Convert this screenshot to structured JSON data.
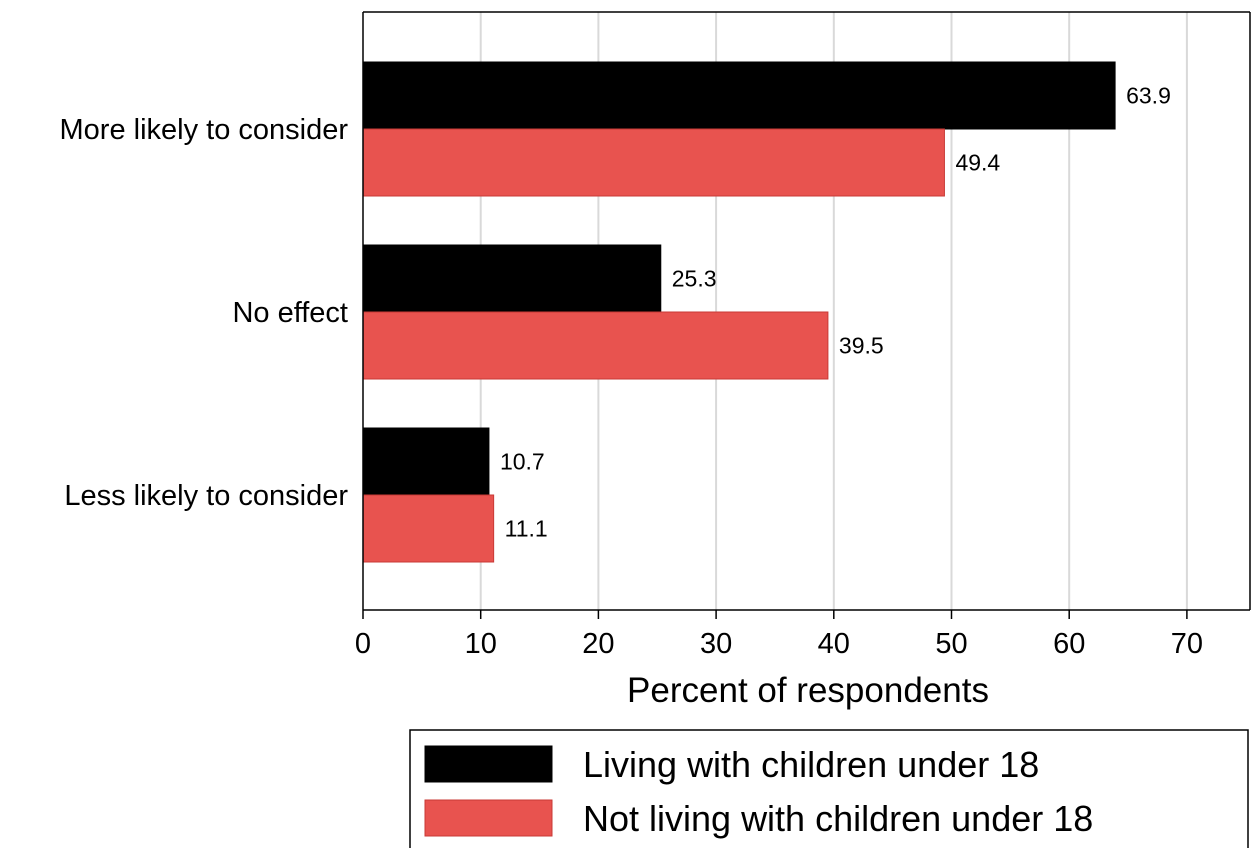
{
  "chart_data": {
    "type": "bar",
    "orientation": "horizontal",
    "categories": [
      "More likely to consider",
      "No effect",
      "Less likely to consider"
    ],
    "series": [
      {
        "name": "Living with children under 18",
        "color": "#000000",
        "values": [
          63.9,
          25.3,
          10.7
        ]
      },
      {
        "name": "Not living with children under 18",
        "color": "#e8534f",
        "values": [
          49.4,
          39.5,
          11.1
        ]
      }
    ],
    "value_labels": [
      [
        "63.9",
        "25.3",
        "10.7"
      ],
      [
        "49.4",
        "39.5",
        "11.1"
      ]
    ],
    "xlabel": "Percent of respondents",
    "ylabel": "",
    "xlim": [
      0,
      75
    ],
    "xticks": [
      0,
      10,
      20,
      30,
      40,
      50,
      60,
      70
    ],
    "grid": "vertical",
    "legend_position": "bottom-right"
  }
}
